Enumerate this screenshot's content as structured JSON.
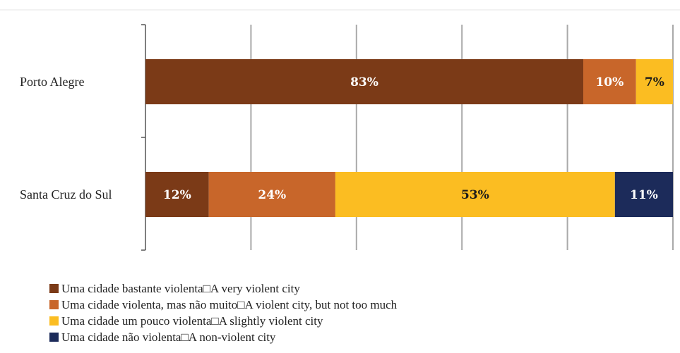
{
  "chart_data": {
    "type": "bar",
    "orientation": "horizontal",
    "stacked": true,
    "categories": [
      "Porto Alegre",
      "Santa Cruz do Sul"
    ],
    "series": [
      {
        "name": "Uma cidade bastante violenta□A very violent city",
        "color": "#7b3a17",
        "values": [
          83,
          12
        ],
        "labels": [
          "83%",
          "12%"
        ]
      },
      {
        "name": "Uma cidade violenta, mas não muito□A violent city, but not too much",
        "color": "#c8662a",
        "values": [
          10,
          24
        ],
        "labels": [
          "10%",
          "24%"
        ]
      },
      {
        "name": "Uma cidade um pouco violenta□A slightly violent city",
        "color": "#fbbd22",
        "values": [
          7,
          53
        ],
        "labels": [
          "7%",
          "53%"
        ]
      },
      {
        "name": "Uma cidade não violenta□A non-violent city",
        "color": "#1c2b5a",
        "values": [
          0,
          11
        ],
        "labels": [
          "",
          "11%"
        ]
      }
    ],
    "xlim": [
      0,
      100
    ],
    "grid": true,
    "legend_position": "bottom-left"
  }
}
